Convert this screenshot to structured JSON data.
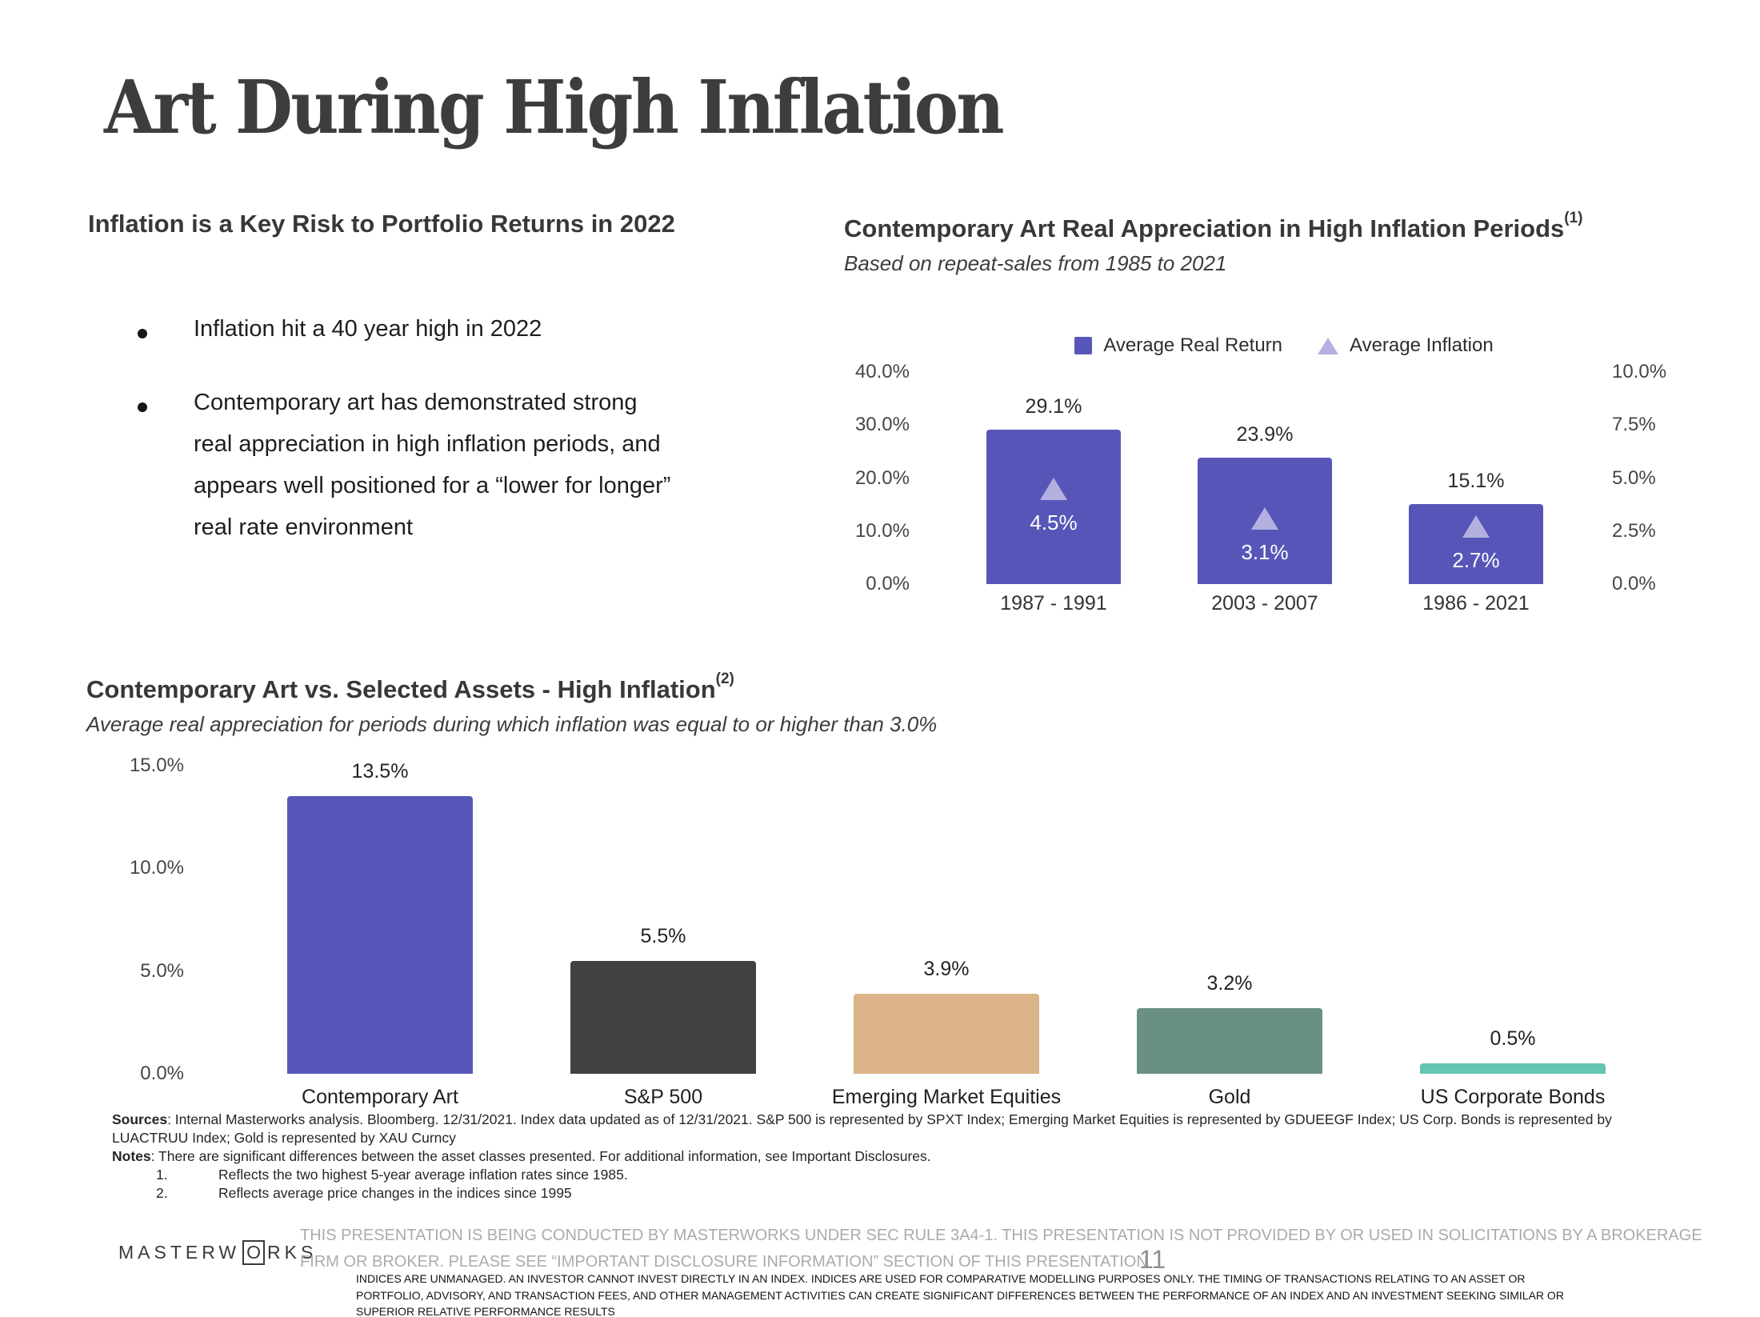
{
  "slide": {
    "title": "Art During High Inflation",
    "page_number": "11"
  },
  "left_section": {
    "heading": "Inflation is a Key Risk to Portfolio Returns in 2022",
    "bullets": [
      "Inflation hit a 40 year high in 2022",
      "Contemporary art has demonstrated strong real appreciation in high inflation periods, and appears well positioned for a “lower for longer” real rate environment"
    ]
  },
  "chart_data": [
    {
      "type": "bar",
      "title": "Contemporary Art Real Appreciation in High Inflation Periods",
      "title_superscript": "(1)",
      "subtitle": "Based on repeat-sales from 1985 to 2021",
      "legend": [
        {
          "label": "Average Real Return",
          "marker": "square",
          "color": "#5756b8"
        },
        {
          "label": "Average Inflation",
          "marker": "triangle",
          "color": "#b3b0e0"
        }
      ],
      "categories": [
        "1987 - 1991",
        "2003 - 2007",
        "1986 - 2021"
      ],
      "series": [
        {
          "name": "Average Real Return",
          "axis": "left",
          "color": "#5756b8",
          "values": [
            29.1,
            23.9,
            15.1
          ],
          "labels": [
            "29.1%",
            "23.9%",
            "15.1%"
          ]
        },
        {
          "name": "Average Inflation",
          "axis": "right",
          "color": "#b3b0e0",
          "values": [
            4.5,
            3.1,
            2.7
          ],
          "labels": [
            "4.5%",
            "3.1%",
            "2.7%"
          ]
        }
      ],
      "left_axis": {
        "max": 40,
        "ticks": [
          "40.0%",
          "30.0%",
          "20.0%",
          "10.0%",
          "0.0%"
        ]
      },
      "right_axis": {
        "max": 10,
        "ticks": [
          "10.0%",
          "7.5%",
          "5.0%",
          "2.5%",
          "0.0%"
        ]
      },
      "grid": false,
      "legend_position": "top-center"
    },
    {
      "type": "bar",
      "title": "Contemporary Art vs. Selected Assets - High Inflation",
      "title_superscript": "(2)",
      "subtitle": "Average real appreciation for periods during which inflation was equal to or higher than 3.0%",
      "categories": [
        "Contemporary Art",
        "S&P 500",
        "Emerging Market Equities",
        "Gold",
        "US Corporate Bonds"
      ],
      "values": [
        13.5,
        5.5,
        3.9,
        3.2,
        0.5
      ],
      "labels": [
        "13.5%",
        "5.5%",
        "3.9%",
        "3.2%",
        "0.5%"
      ],
      "colors": [
        "#5756b8",
        "#414141",
        "#dcb489",
        "#6a9082",
        "#64c5b1"
      ],
      "y_axis": {
        "max": 15,
        "ticks": [
          "15.0%",
          "10.0%",
          "5.0%",
          "0.0%"
        ]
      },
      "grid": false
    }
  ],
  "footer": {
    "sources_label": "Sources",
    "sources_text": ": Internal Masterworks analysis. Bloomberg. 12/31/2021. Index data updated as of 12/31/2021. S&P 500 is represented by SPXT Index; Emerging Market Equities is represented by GDUEEGF Index; US Corp. Bonds is represented by LUACTRUU Index; Gold is represented by XAU Curncy",
    "notes_label": "Notes",
    "notes_text": ": There are significant differences between the asset classes presented. For additional information, see Important Disclosures.",
    "footnotes": [
      {
        "num": "1.",
        "text": "Reflects the two highest 5-year average inflation rates since 1985."
      },
      {
        "num": "2.",
        "text": "Reflects average price changes in the indices since 1995"
      }
    ],
    "logo": {
      "pre": "MASTERW",
      "boxed": "O",
      "post": "RKS"
    },
    "disclaimer": "THIS PRESENTATION  IS BEING CONDUCTED BY MASTERWORKS UNDER SEC RULE 3A4-1. THIS PRESENTATION  IS NOT PROVIDED BY OR USED IN SOLICITATIONS BY A BROKERAGE FIRM OR BROKER. PLEASE SEE “IMPORTANT DISCLOSURE INFORMATION” SECTION OF THIS PRESENTATION",
    "compliance": "INDICES ARE UNMANAGED. AN INVESTOR CANNOT INVEST DIRECTLY IN AN INDEX. INDICES ARE USED FOR COMPARATIVE MODELLING PURPOSES ONLY. THE TIMING OF TRANSACTIONS RELATING TO AN ASSET OR PORTFOLIO, ADVISORY, AND TRANSACTION FEES, AND OTHER MANAGEMENT ACTIVITIES CAN CREATE SIGNIFICANT DIFFERENCES BETWEEN THE PERFORMANCE OF AN INDEX AND AN INVESTMENT SEEKING SIMILAR OR SUPERIOR RELATIVE PERFORMANCE RESULTS"
  }
}
